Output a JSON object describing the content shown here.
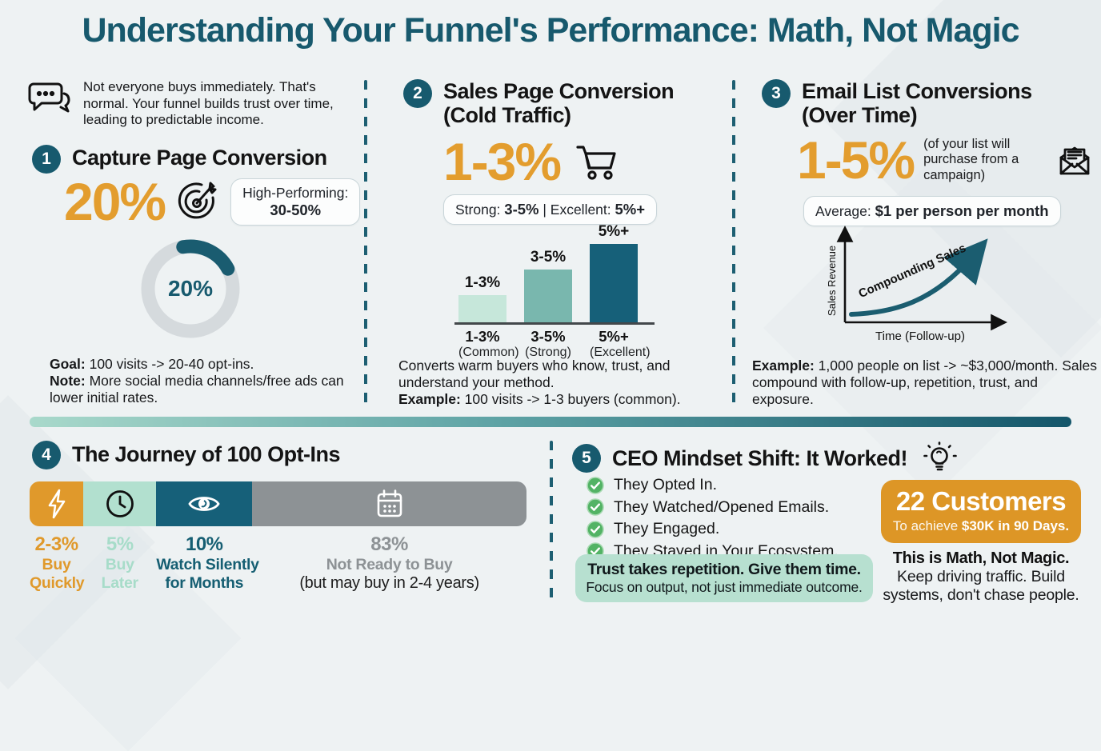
{
  "title": "Understanding Your Funnel's Performance: Math, Not Magic",
  "intro": {
    "text": "Not everyone buys immediately. That's normal. Your funnel builds trust over time, leading to predictable income."
  },
  "s1": {
    "num": "1",
    "heading": "Capture Page Conversion",
    "value": "20%",
    "badge_line1": "High-Performing:",
    "badge_line2": "30-50%",
    "goal_label": "Goal:",
    "goal_text": " 100 visits -> 20-40 opt-ins.",
    "note_label": "Note:",
    "note_text": " More social media channels/free ads can lower initial rates."
  },
  "s2": {
    "num": "2",
    "heading_line1": "Sales Page Conversion",
    "heading_line2": "(Cold Traffic)",
    "value": "1-3%",
    "badge": {
      "t1": "Strong: ",
      "b1": "3-5%",
      "t2": " | Excellent: ",
      "b2": "5%+"
    },
    "desc": "Converts warm buyers who know, trust, and understand your method.",
    "example_label": "Example:",
    "example_text": " 100 visits -> 1-3 buyers (common)."
  },
  "s3": {
    "num": "3",
    "heading_line1": "Email List Conversions",
    "heading_line2": "(Over Time)",
    "value": "1-5%",
    "side_note": "(of your list will purchase from a campaign)",
    "badge": {
      "t1": "Average: ",
      "b1": "$1 per person per month"
    },
    "example_label": "Example:",
    "example_text": " 1,000 people on list -> ~$3,000/month. Sales compound with follow-up, repetition, trust, and exposure."
  },
  "s4": {
    "num": "4",
    "heading": "The Journey of 100 Opt-Ins"
  },
  "s5": {
    "num": "5",
    "heading": "CEO Mindset Shift: It Worked!",
    "checklist": [
      "They Opted In.",
      "They Watched/Opened Emails.",
      "They Engaged.",
      "They Stayed in Your Ecosystem."
    ],
    "tip_line1": "Trust takes repetition. Give them time.",
    "tip_line2": "Focus on output, not just immediate outcome.",
    "result_title": "22 Customers",
    "result_sub_regular": "To achieve ",
    "result_sub_bold": "$30K in 90 Days.",
    "closing_bold": "This is Math, Not Magic.",
    "closing_text": "Keep driving traffic. Build systems, don't chase people."
  },
  "chart_data": [
    {
      "type": "pie",
      "variant": "donut",
      "section": "Capture Page Conversion",
      "labels": [
        "Opt-in rate",
        "Remainder"
      ],
      "values": [
        20,
        80
      ],
      "center_label": "20%",
      "colors": [
        "#1a5c70",
        "#d5dadd"
      ]
    },
    {
      "type": "bar",
      "section": "Sales Page Conversion (Cold Traffic)",
      "categories": [
        "1-3% (Common)",
        "3-5% (Strong)",
        "5%+ (Excellent)"
      ],
      "bar_labels": [
        "1-3%",
        "3-5%",
        "5%+"
      ],
      "cat_line1": [
        "1-3%",
        "3-5%",
        "5%+"
      ],
      "cat_line2": [
        "(Common)",
        "(Strong)",
        "(Excellent)"
      ],
      "values": [
        34,
        66,
        98
      ],
      "ylim": [
        0,
        100
      ],
      "value_note": "qualitative relative heights, no numeric axis shown",
      "colors": [
        "#c6e7da",
        "#79b7ae",
        "#166079"
      ],
      "grid": false,
      "legend": false
    },
    {
      "type": "line",
      "section": "Email List Conversions (Over Time)",
      "xlabel": "Time (Follow-up)",
      "ylabel": "Sales Revenue",
      "annotation": "Compounding Sales",
      "shape": "exponential growth curve ending in arrow",
      "color": "#1b5d70",
      "grid": false
    },
    {
      "type": "bar",
      "variant": "horizontal-stacked",
      "section": "The Journey of 100 Opt-Ins",
      "segments": [
        {
          "pct": "2-3%",
          "label_lines": [
            "Buy",
            "Quickly"
          ],
          "width_frac": 0.108,
          "color": "#e0992b",
          "text_color": "#e0992b",
          "icon": "lightning"
        },
        {
          "pct": "5%",
          "label_lines": [
            "Buy",
            "Later"
          ],
          "width_frac": 0.147,
          "color": "#b2e0cf",
          "text_color": "#a7dcc9",
          "icon": "clock"
        },
        {
          "pct": "10%",
          "label_lines": [
            "Watch Silently",
            "for Months"
          ],
          "width_frac": 0.193,
          "color": "#166079",
          "text_color": "#155e72",
          "icon": "eye"
        },
        {
          "pct": "83%",
          "label_lines": [
            "Not Ready to Buy",
            "(but may buy in 2-4 years)"
          ],
          "width_frac": 0.552,
          "color": "#8d9295",
          "text_color": "#8d9295",
          "line2_color": "#1c1c1c",
          "icon": "calendar"
        }
      ]
    }
  ]
}
